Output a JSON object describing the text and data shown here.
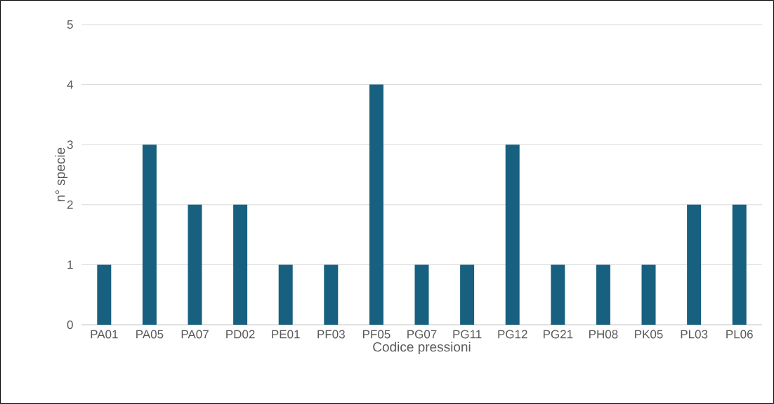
{
  "chart_data": {
    "type": "bar",
    "xlabel": "Codice pressioni",
    "ylabel": "n° specie",
    "categories": [
      "PA01",
      "PA05",
      "PA07",
      "PD02",
      "PE01",
      "PF03",
      "PF05",
      "PG07",
      "PG11",
      "PG12",
      "PG21",
      "PH08",
      "PK05",
      "PL03",
      "PL06"
    ],
    "values": [
      1,
      3,
      2,
      2,
      1,
      1,
      4,
      1,
      1,
      3,
      1,
      1,
      1,
      2,
      2
    ],
    "color": "#17607f",
    "ylim": [
      0,
      5
    ],
    "yticks": [
      0,
      1,
      2,
      3,
      4,
      5
    ],
    "grid": "y"
  }
}
